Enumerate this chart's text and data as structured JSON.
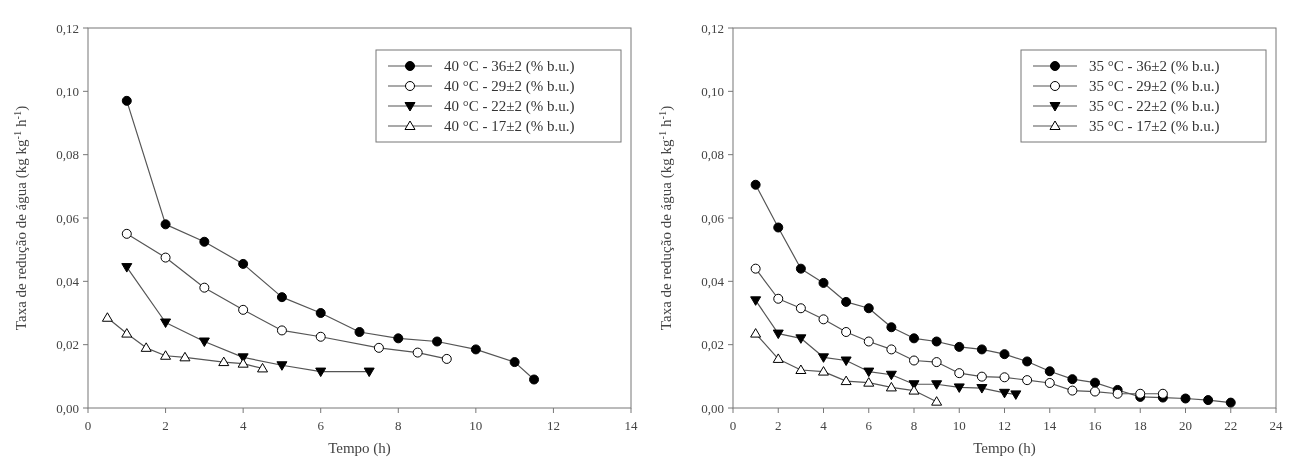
{
  "chart_data": [
    {
      "type": "line",
      "xlabel": "Tempo (h)",
      "ylabel": "Taxa de redução de água (kg kg$^{-1}$ h$^{-1}$)",
      "xlim": [
        0,
        14
      ],
      "xticks": [
        0,
        2,
        4,
        6,
        8,
        10,
        12,
        14
      ],
      "ylim": [
        0,
        0.12
      ],
      "yticks": [
        {
          "value": 0,
          "label": "0,00"
        },
        {
          "value": 0.02,
          "label": "0,02"
        },
        {
          "value": 0.04,
          "label": "0,04"
        },
        {
          "value": 0.06,
          "label": "0,06"
        },
        {
          "value": 0.08,
          "label": "0,08"
        },
        {
          "value": 0.1,
          "label": "0,10"
        },
        {
          "value": 0.12,
          "label": "0,12"
        }
      ],
      "legend": "top right",
      "series": [
        {
          "name": "40 °C - 36±2 (% b.u.)",
          "color": "#000000",
          "marker": "circle",
          "x": [
            1,
            2,
            3,
            4,
            5,
            6,
            7,
            8,
            9,
            10,
            11,
            11.5
          ],
          "values": [
            0.097,
            0.058,
            0.0525,
            0.0455,
            0.035,
            0.03,
            0.024,
            0.022,
            0.021,
            0.0185,
            0.0145,
            0.009
          ]
        },
        {
          "name": "40 °C - 29±2 (% b.u.)",
          "color": "#000000",
          "marker": "circle-open",
          "x": [
            1,
            2,
            3,
            4,
            5,
            6,
            7.5,
            8.5,
            9.25
          ],
          "values": [
            0.055,
            0.0475,
            0.038,
            0.031,
            0.0245,
            0.0225,
            0.019,
            0.0175,
            0.0155
          ]
        },
        {
          "name": "40 °C - 22±2 (% b.u.)",
          "color": "#000000",
          "marker": "triangle-down",
          "x": [
            1,
            2,
            3,
            4,
            5,
            6,
            7.25
          ],
          "values": [
            0.0445,
            0.027,
            0.021,
            0.016,
            0.0135,
            0.0115,
            0.0115
          ]
        },
        {
          "name": "40 °C - 17±2 (% b.u.)",
          "color": "#000000",
          "marker": "triangle-open",
          "x": [
            0.5,
            1,
            1.5,
            2,
            2.5,
            3.5,
            4,
            4.5
          ],
          "values": [
            0.0285,
            0.0235,
            0.019,
            0.0165,
            0.016,
            0.0145,
            0.014,
            0.0125
          ]
        }
      ]
    },
    {
      "type": "line",
      "xlabel": "Tempo (h)",
      "ylabel": "Taxa de redução de água (kg kg$^{-1}$ h$^{-1}$)",
      "xlim": [
        0,
        24
      ],
      "xticks": [
        0,
        2,
        4,
        6,
        8,
        10,
        12,
        14,
        16,
        18,
        20,
        22,
        24
      ],
      "ylim": [
        0,
        0.12
      ],
      "yticks": [
        {
          "value": 0,
          "label": "0,00"
        },
        {
          "value": 0.02,
          "label": "0,02"
        },
        {
          "value": 0.04,
          "label": "0,04"
        },
        {
          "value": 0.06,
          "label": "0,06"
        },
        {
          "value": 0.08,
          "label": "0,08"
        },
        {
          "value": 0.1,
          "label": "0,10"
        },
        {
          "value": 0.12,
          "label": "0,12"
        }
      ],
      "legend": "top right",
      "series": [
        {
          "name": "35 °C - 36±2 (% b.u.)",
          "color": "#000000",
          "marker": "circle",
          "x": [
            1,
            2,
            3,
            4,
            5,
            6,
            7,
            8,
            9,
            10,
            11,
            12,
            13,
            14,
            15,
            16,
            17,
            18,
            19,
            20,
            21,
            22
          ],
          "values": [
            0.0705,
            0.057,
            0.044,
            0.0395,
            0.0335,
            0.0315,
            0.0255,
            0.022,
            0.021,
            0.0193,
            0.0185,
            0.017,
            0.0147,
            0.0116,
            0.0091,
            0.008,
            0.0057,
            0.0035,
            0.0033,
            0.003,
            0.0025,
            0.0017
          ]
        },
        {
          "name": "35 °C - 29±2 (% b.u.)",
          "color": "#000000",
          "marker": "circle-open",
          "x": [
            1,
            2,
            3,
            4,
            5,
            6,
            7,
            8,
            9,
            10,
            11,
            12,
            13,
            14,
            15,
            16,
            17,
            18,
            19
          ],
          "values": [
            0.044,
            0.0345,
            0.0315,
            0.028,
            0.024,
            0.021,
            0.0185,
            0.015,
            0.0145,
            0.011,
            0.0099,
            0.0097,
            0.0088,
            0.0079,
            0.0055,
            0.0052,
            0.0045,
            0.0045,
            0.0045
          ]
        },
        {
          "name": "35 °C - 22±2 (% b.u.)",
          "color": "#000000",
          "marker": "triangle-down",
          "x": [
            1,
            2,
            3,
            4,
            5,
            6,
            7,
            8,
            9,
            10,
            11,
            12,
            12.5
          ],
          "values": [
            0.034,
            0.0235,
            0.022,
            0.016,
            0.015,
            0.0115,
            0.0105,
            0.0075,
            0.0075,
            0.0065,
            0.0063,
            0.0048,
            0.0043
          ]
        },
        {
          "name": "35 °C - 17±2 (% b.u.)",
          "color": "#000000",
          "marker": "triangle-open",
          "x": [
            1,
            2,
            3,
            4,
            5,
            6,
            7,
            8,
            9
          ],
          "values": [
            0.0235,
            0.0155,
            0.012,
            0.0115,
            0.0085,
            0.008,
            0.0065,
            0.0055,
            0.002
          ]
        }
      ]
    }
  ]
}
